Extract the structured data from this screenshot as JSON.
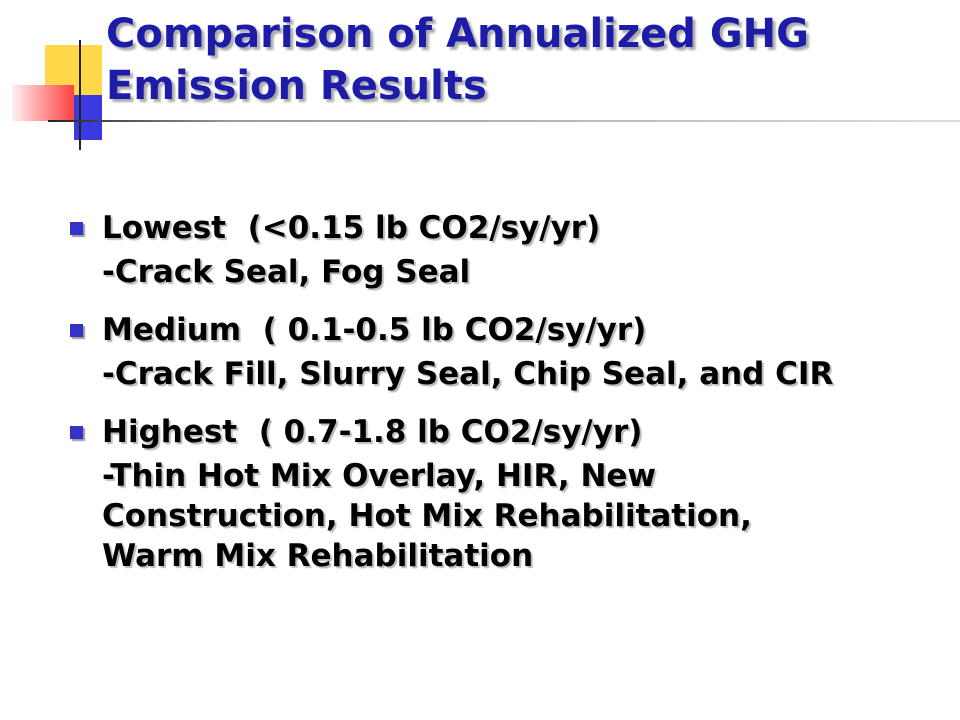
{
  "title": "Comparison of Annualized GHG Emission Results",
  "bullets": [
    {
      "heading": "Lowest  (<0.15 lb CO2/sy/yr)",
      "detail": "-Crack Seal, Fog Seal"
    },
    {
      "heading": "Medium  ( 0.1-0.5 lb CO2/sy/yr)",
      "detail": "-Crack Fill, Slurry Seal, Chip Seal, and CIR"
    },
    {
      "heading": "Highest  ( 0.7-1.8 lb CO2/sy/yr)",
      "detail": "-Thin Hot Mix Overlay, HIR, New Construction, Hot Mix Rehabilitation, Warm Mix Rehabilitation"
    }
  ]
}
